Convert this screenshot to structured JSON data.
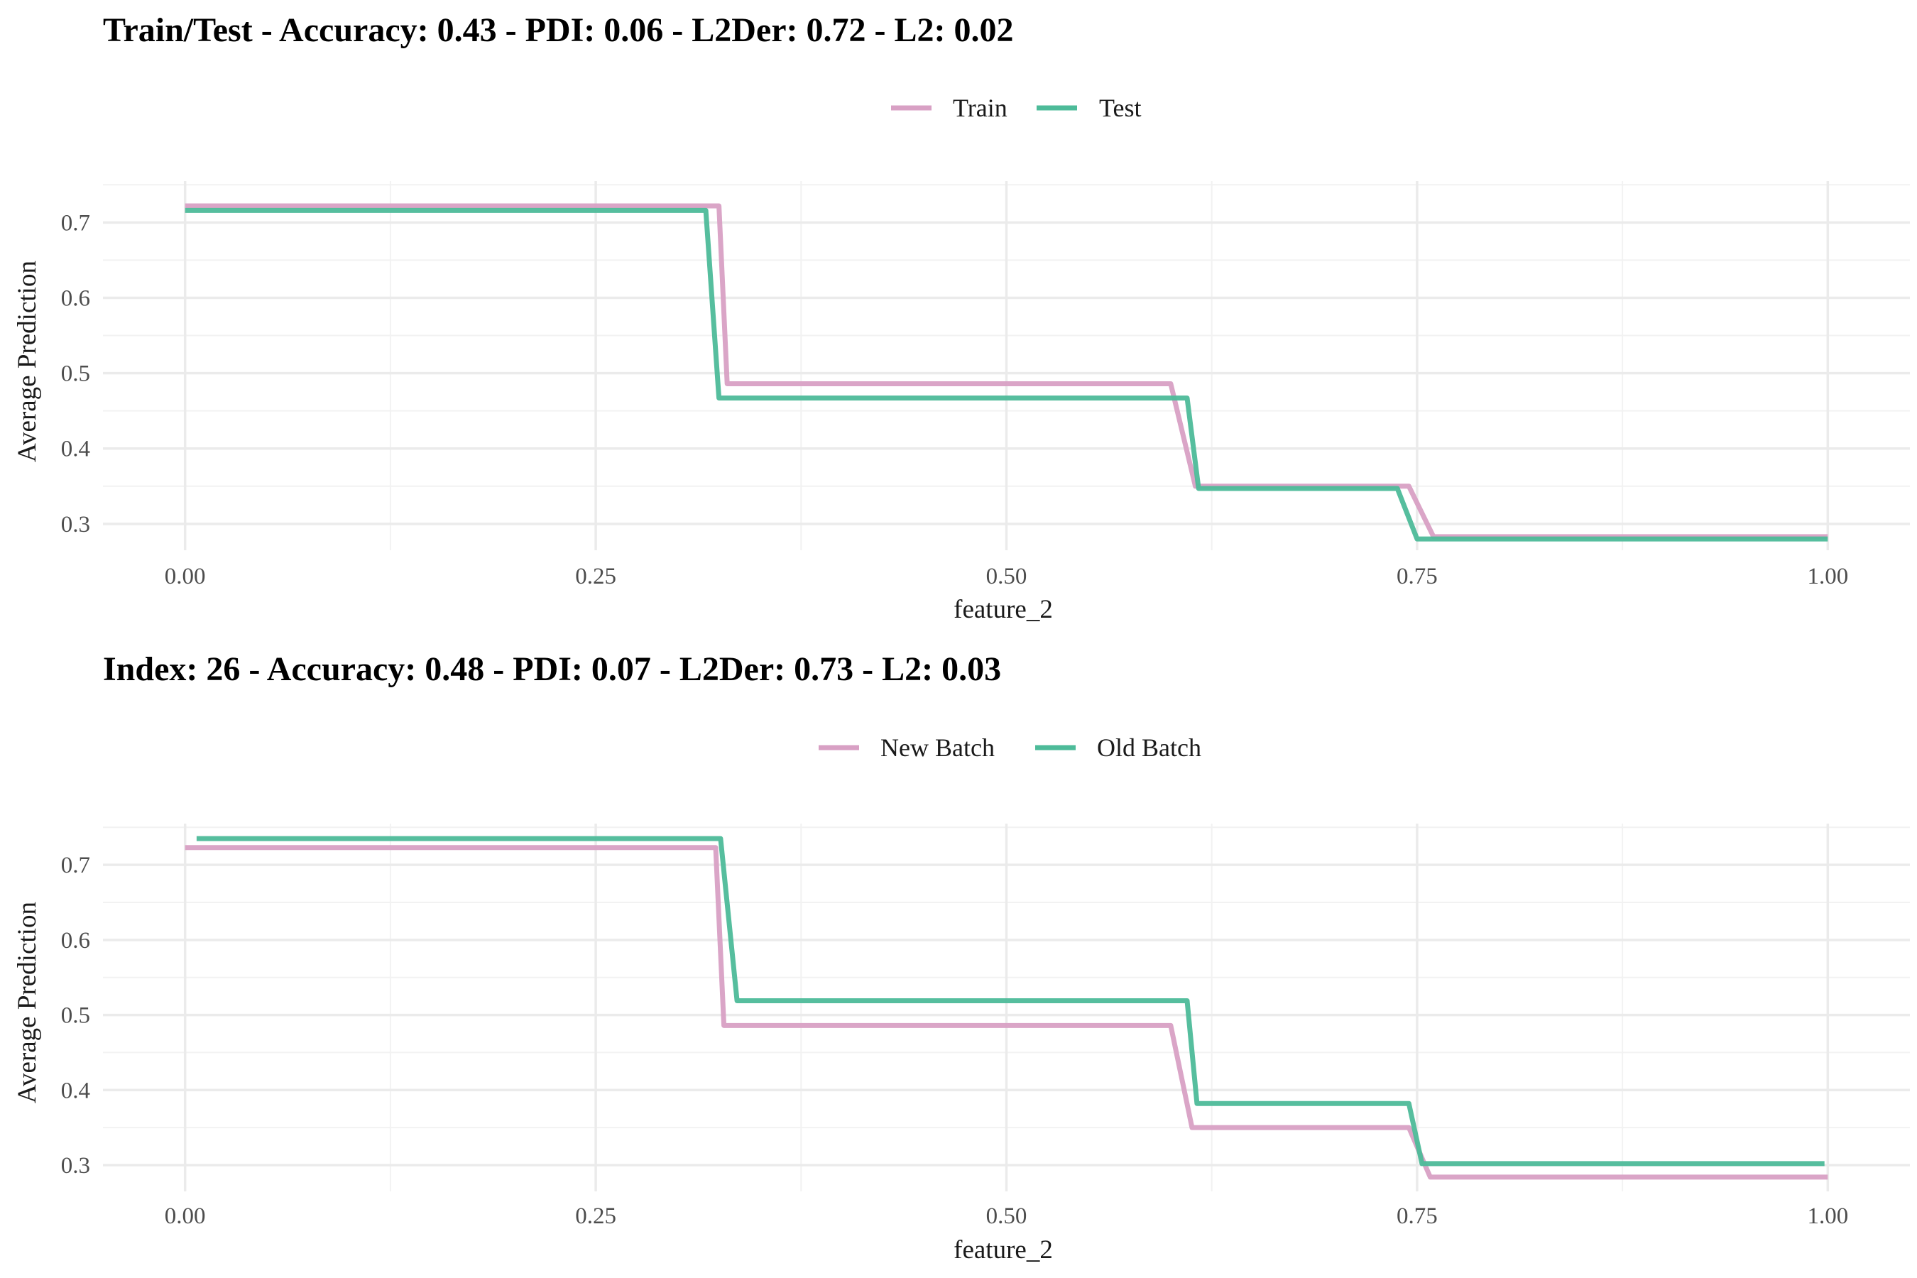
{
  "colors": {
    "pink": "#d8a0c4",
    "green": "#4dbb99"
  },
  "chart_data": [
    {
      "type": "line",
      "title": "Train/Test - Accuracy: 0.43 - PDI: 0.06 - L2Der: 0.72 - L2: 0.02",
      "xlabel": "feature_2",
      "ylabel": "Average Prediction",
      "xlim": [
        -0.05,
        1.05
      ],
      "ylim": [
        0.265,
        0.755
      ],
      "xticks": [
        0.0,
        0.25,
        0.5,
        0.75,
        1.0
      ],
      "xtick_labels": [
        "0.00",
        "0.25",
        "0.50",
        "0.75",
        "1.00"
      ],
      "yticks": [
        0.3,
        0.4,
        0.5,
        0.6,
        0.7
      ],
      "ytick_labels": [
        "0.3",
        "0.4",
        "0.5",
        "0.6",
        "0.7"
      ],
      "grid": true,
      "legend_position": "top",
      "series": [
        {
          "name": "Train",
          "color": "#d8a0c4",
          "x": [
            0.0,
            0.325,
            0.33,
            0.6,
            0.615,
            0.745,
            0.76,
            1.0
          ],
          "y": [
            0.722,
            0.722,
            0.486,
            0.486,
            0.35,
            0.35,
            0.283,
            0.283
          ]
        },
        {
          "name": "Test",
          "color": "#4dbb99",
          "x": [
            0.0,
            0.317,
            0.325,
            0.61,
            0.617,
            0.738,
            0.75,
            1.0
          ],
          "y": [
            0.716,
            0.716,
            0.467,
            0.467,
            0.347,
            0.347,
            0.28,
            0.28
          ]
        }
      ]
    },
    {
      "type": "line",
      "title": "Index: 26 - Accuracy: 0.48 - PDI: 0.07 - L2Der: 0.73 - L2: 0.03",
      "xlabel": "feature_2",
      "ylabel": "Average Prediction",
      "xlim": [
        -0.05,
        1.05
      ],
      "ylim": [
        0.265,
        0.755
      ],
      "xticks": [
        0.0,
        0.25,
        0.5,
        0.75,
        1.0
      ],
      "xtick_labels": [
        "0.00",
        "0.25",
        "0.50",
        "0.75",
        "1.00"
      ],
      "yticks": [
        0.3,
        0.4,
        0.5,
        0.6,
        0.7
      ],
      "ytick_labels": [
        "0.3",
        "0.4",
        "0.5",
        "0.6",
        "0.7"
      ],
      "grid": true,
      "legend_position": "top",
      "series": [
        {
          "name": "New Batch",
          "color": "#d8a0c4",
          "x": [
            0.0,
            0.323,
            0.328,
            0.6,
            0.613,
            0.745,
            0.758,
            1.0
          ],
          "y": [
            0.723,
            0.723,
            0.486,
            0.486,
            0.35,
            0.35,
            0.284,
            0.284
          ]
        },
        {
          "name": "Old Batch",
          "color": "#4dbb99",
          "x": [
            0.007,
            0.326,
            0.336,
            0.61,
            0.616,
            0.745,
            0.753,
            0.998
          ],
          "y": [
            0.735,
            0.735,
            0.519,
            0.519,
            0.382,
            0.382,
            0.302,
            0.302
          ]
        }
      ]
    }
  ]
}
